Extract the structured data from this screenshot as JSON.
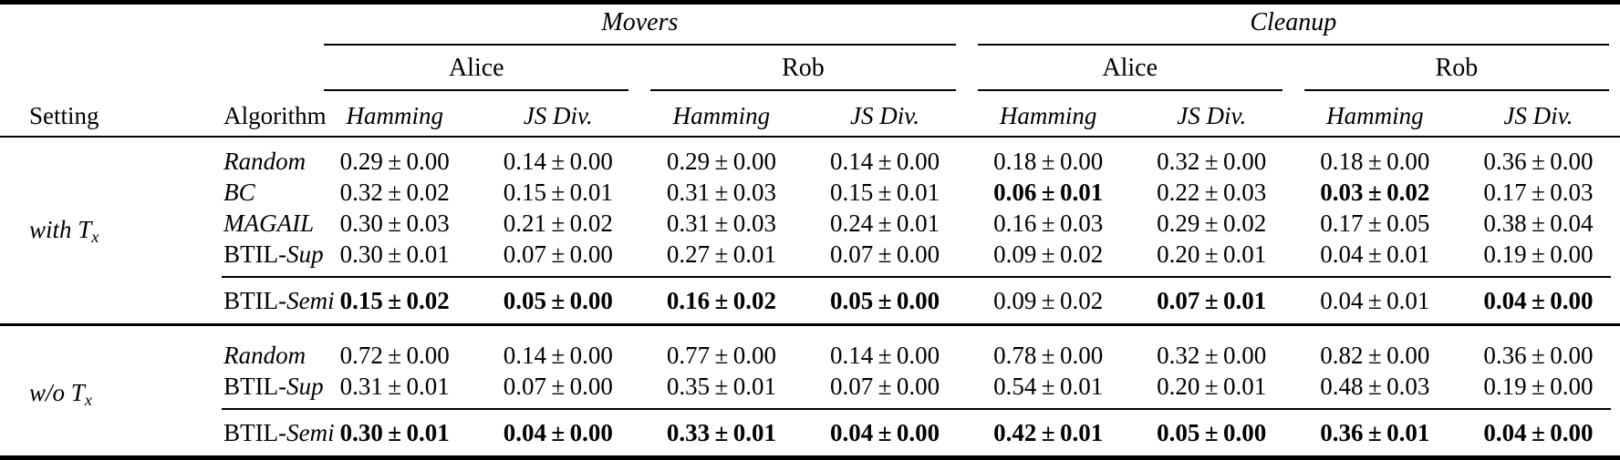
{
  "table": {
    "env_groups": [
      {
        "label": "Movers"
      },
      {
        "label": "Cleanup"
      }
    ],
    "agent_labels": [
      "Alice",
      "Rob",
      "Alice",
      "Rob"
    ],
    "setting_header": "Setting",
    "algorithm_header": "Algorithm",
    "metric_headers": [
      "Hamming",
      "JS Div."
    ],
    "plus_minus": "±",
    "sections": [
      {
        "setting": {
          "text": "with T",
          "subscript": "x"
        },
        "rows": [
          {
            "algo": {
              "roman": "",
              "italic": "Random"
            },
            "cells": [
              {
                "mean": "0.29",
                "std": "0.00",
                "bold": false
              },
              {
                "mean": "0.14",
                "std": "0.00",
                "bold": false
              },
              {
                "mean": "0.29",
                "std": "0.00",
                "bold": false
              },
              {
                "mean": "0.14",
                "std": "0.00",
                "bold": false
              },
              {
                "mean": "0.18",
                "std": "0.00",
                "bold": false
              },
              {
                "mean": "0.32",
                "std": "0.00",
                "bold": false
              },
              {
                "mean": "0.18",
                "std": "0.00",
                "bold": false
              },
              {
                "mean": "0.36",
                "std": "0.00",
                "bold": false
              }
            ]
          },
          {
            "algo": {
              "roman": "",
              "italic": "BC"
            },
            "cells": [
              {
                "mean": "0.32",
                "std": "0.02",
                "bold": false
              },
              {
                "mean": "0.15",
                "std": "0.01",
                "bold": false
              },
              {
                "mean": "0.31",
                "std": "0.03",
                "bold": false
              },
              {
                "mean": "0.15",
                "std": "0.01",
                "bold": false
              },
              {
                "mean": "0.06",
                "std": "0.01",
                "bold": true
              },
              {
                "mean": "0.22",
                "std": "0.03",
                "bold": false
              },
              {
                "mean": "0.03",
                "std": "0.02",
                "bold": true
              },
              {
                "mean": "0.17",
                "std": "0.03",
                "bold": false
              }
            ]
          },
          {
            "algo": {
              "roman": "",
              "italic": "MAGAIL"
            },
            "cells": [
              {
                "mean": "0.30",
                "std": "0.03",
                "bold": false
              },
              {
                "mean": "0.21",
                "std": "0.02",
                "bold": false
              },
              {
                "mean": "0.31",
                "std": "0.03",
                "bold": false
              },
              {
                "mean": "0.24",
                "std": "0.01",
                "bold": false
              },
              {
                "mean": "0.16",
                "std": "0.03",
                "bold": false
              },
              {
                "mean": "0.29",
                "std": "0.02",
                "bold": false
              },
              {
                "mean": "0.17",
                "std": "0.05",
                "bold": false
              },
              {
                "mean": "0.38",
                "std": "0.04",
                "bold": false
              }
            ]
          },
          {
            "algo": {
              "roman": "BTIL-",
              "italic": "Sup"
            },
            "cells": [
              {
                "mean": "0.30",
                "std": "0.01",
                "bold": false
              },
              {
                "mean": "0.07",
                "std": "0.00",
                "bold": false
              },
              {
                "mean": "0.27",
                "std": "0.01",
                "bold": false
              },
              {
                "mean": "0.07",
                "std": "0.00",
                "bold": false
              },
              {
                "mean": "0.09",
                "std": "0.02",
                "bold": false
              },
              {
                "mean": "0.20",
                "std": "0.01",
                "bold": false
              },
              {
                "mean": "0.04",
                "std": "0.01",
                "bold": false
              },
              {
                "mean": "0.19",
                "std": "0.00",
                "bold": false
              }
            ]
          }
        ],
        "semi_row": {
          "algo": {
            "roman": "BTIL-",
            "italic": "Semi"
          },
          "cells": [
            {
              "mean": "0.15",
              "std": "0.02",
              "bold": true
            },
            {
              "mean": "0.05",
              "std": "0.00",
              "bold": true
            },
            {
              "mean": "0.16",
              "std": "0.02",
              "bold": true
            },
            {
              "mean": "0.05",
              "std": "0.00",
              "bold": true
            },
            {
              "mean": "0.09",
              "std": "0.02",
              "bold": false
            },
            {
              "mean": "0.07",
              "std": "0.01",
              "bold": true
            },
            {
              "mean": "0.04",
              "std": "0.01",
              "bold": false
            },
            {
              "mean": "0.04",
              "std": "0.00",
              "bold": true
            }
          ]
        }
      },
      {
        "setting": {
          "text": "w/o T",
          "subscript": "x"
        },
        "rows": [
          {
            "algo": {
              "roman": "",
              "italic": "Random"
            },
            "cells": [
              {
                "mean": "0.72",
                "std": "0.00",
                "bold": false
              },
              {
                "mean": "0.14",
                "std": "0.00",
                "bold": false
              },
              {
                "mean": "0.77",
                "std": "0.00",
                "bold": false
              },
              {
                "mean": "0.14",
                "std": "0.00",
                "bold": false
              },
              {
                "mean": "0.78",
                "std": "0.00",
                "bold": false
              },
              {
                "mean": "0.32",
                "std": "0.00",
                "bold": false
              },
              {
                "mean": "0.82",
                "std": "0.00",
                "bold": false
              },
              {
                "mean": "0.36",
                "std": "0.00",
                "bold": false
              }
            ]
          },
          {
            "algo": {
              "roman": "BTIL-",
              "italic": "Sup"
            },
            "cells": [
              {
                "mean": "0.31",
                "std": "0.01",
                "bold": false
              },
              {
                "mean": "0.07",
                "std": "0.00",
                "bold": false
              },
              {
                "mean": "0.35",
                "std": "0.01",
                "bold": false
              },
              {
                "mean": "0.07",
                "std": "0.00",
                "bold": false
              },
              {
                "mean": "0.54",
                "std": "0.01",
                "bold": false
              },
              {
                "mean": "0.20",
                "std": "0.01",
                "bold": false
              },
              {
                "mean": "0.48",
                "std": "0.03",
                "bold": false
              },
              {
                "mean": "0.19",
                "std": "0.00",
                "bold": false
              }
            ]
          }
        ],
        "semi_row": {
          "algo": {
            "roman": "BTIL-",
            "italic": "Semi"
          },
          "cells": [
            {
              "mean": "0.30",
              "std": "0.01",
              "bold": true
            },
            {
              "mean": "0.04",
              "std": "0.00",
              "bold": true
            },
            {
              "mean": "0.33",
              "std": "0.01",
              "bold": true
            },
            {
              "mean": "0.04",
              "std": "0.00",
              "bold": true
            },
            {
              "mean": "0.42",
              "std": "0.01",
              "bold": true
            },
            {
              "mean": "0.05",
              "std": "0.00",
              "bold": true
            },
            {
              "mean": "0.36",
              "std": "0.01",
              "bold": true
            },
            {
              "mean": "0.04",
              "std": "0.00",
              "bold": true
            }
          ]
        }
      }
    ]
  }
}
